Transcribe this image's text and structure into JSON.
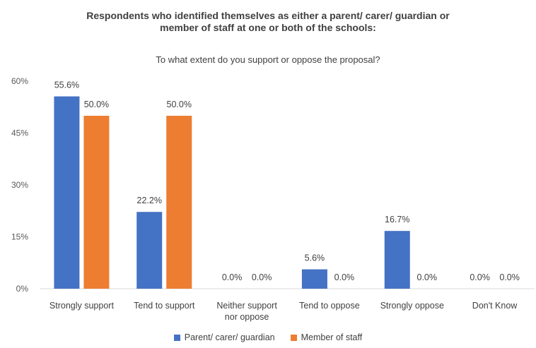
{
  "chart_data": {
    "type": "bar",
    "title": "Respondents who identified themselves as either a parent/ carer/ guardian or member of staff at one or both of the schools:",
    "title_lines": [
      "Respondents who identified themselves as either a parent/ carer/ guardian or",
      "member of staff at one or both of the schools:"
    ],
    "subtitle": "To what extent do you support or oppose the proposal?",
    "categories": [
      [
        "Strongly support"
      ],
      [
        "Tend to support"
      ],
      [
        "Neither support",
        "nor oppose"
      ],
      [
        "Tend to oppose"
      ],
      [
        "Strongly oppose"
      ],
      [
        "Don't Know"
      ]
    ],
    "series": [
      {
        "name": "Parent/ carer/ guardian",
        "color": "#4472C4",
        "values": [
          55.6,
          22.2,
          0.0,
          5.6,
          16.7,
          0.0
        ],
        "labels": [
          "55.6%",
          "22.2%",
          "0.0%",
          "5.6%",
          "16.7%",
          "0.0%"
        ]
      },
      {
        "name": "Member of staff",
        "color": "#ED7D31",
        "values": [
          50.0,
          50.0,
          0.0,
          0.0,
          0.0,
          0.0
        ],
        "labels": [
          "50.0%",
          "50.0%",
          "0.0%",
          "0.0%",
          "0.0%",
          "0.0%"
        ]
      }
    ],
    "y_ticks": [
      "0%",
      "15%",
      "30%",
      "45%",
      "60%"
    ],
    "y_tick_values": [
      0,
      15,
      30,
      45,
      60
    ],
    "ylim": [
      0,
      60
    ],
    "grid": false,
    "legend_position": "bottom"
  }
}
